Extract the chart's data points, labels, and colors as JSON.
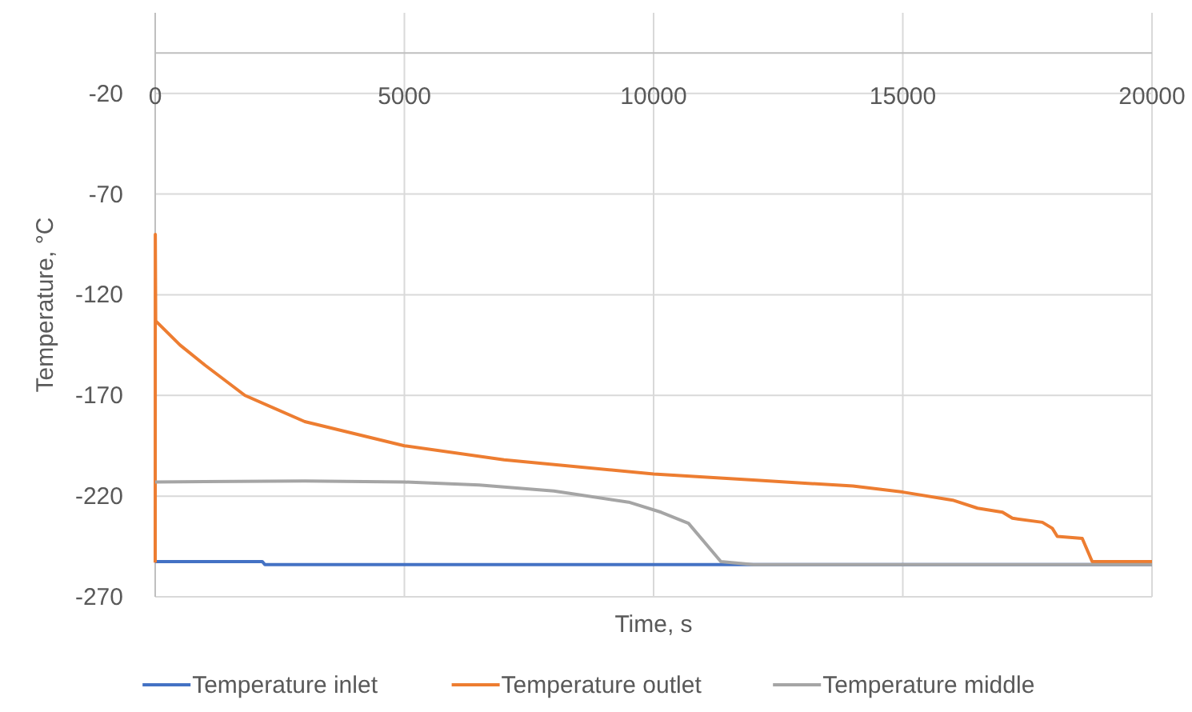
{
  "chart_data": {
    "type": "line",
    "xlabel": "Time, s",
    "ylabel": "Temperature, °C",
    "xlim": [
      0,
      20000
    ],
    "xticks": [
      0,
      5000,
      10000,
      15000,
      20000
    ],
    "ylim": [
      -270,
      20
    ],
    "yticks": [
      -270,
      -220,
      -170,
      -120,
      -70,
      -20
    ],
    "grid": true,
    "legend": "bottom",
    "line_style": "solid",
    "marker": "none",
    "series": [
      {
        "name": "Temperature inlet",
        "color": "#4472c4",
        "x": [
          0,
          2150,
          2200,
          20000
        ],
        "values": [
          -252.5,
          -252.5,
          -254,
          -254
        ]
      },
      {
        "name": "Temperature outlet",
        "color": "#ed7d31",
        "x": [
          0,
          1,
          2,
          10,
          500,
          1000,
          1800,
          3000,
          5000,
          7000,
          10000,
          12000,
          14000,
          15000,
          16000,
          16500,
          17000,
          17200,
          17800,
          18000,
          18100,
          18600,
          18800,
          20000
        ],
        "values": [
          -253,
          -212,
          -90,
          -133,
          -145,
          -155,
          -170,
          -183,
          -195,
          -202,
          -209,
          -212,
          -215,
          -218,
          -222,
          -226,
          -228,
          -231,
          -233,
          -236,
          -240,
          -241,
          -252.5,
          -252.5
        ]
      },
      {
        "name": "Temperature middle",
        "color": "#a5a5a5",
        "x": [
          0,
          3000,
          5000,
          6500,
          8000,
          9500,
          10150,
          10700,
          11350,
          12000,
          20000
        ],
        "values": [
          -213,
          -212.5,
          -213,
          -214.5,
          -217.5,
          -223,
          -228,
          -233.5,
          -252.5,
          -254,
          -254
        ]
      }
    ]
  }
}
